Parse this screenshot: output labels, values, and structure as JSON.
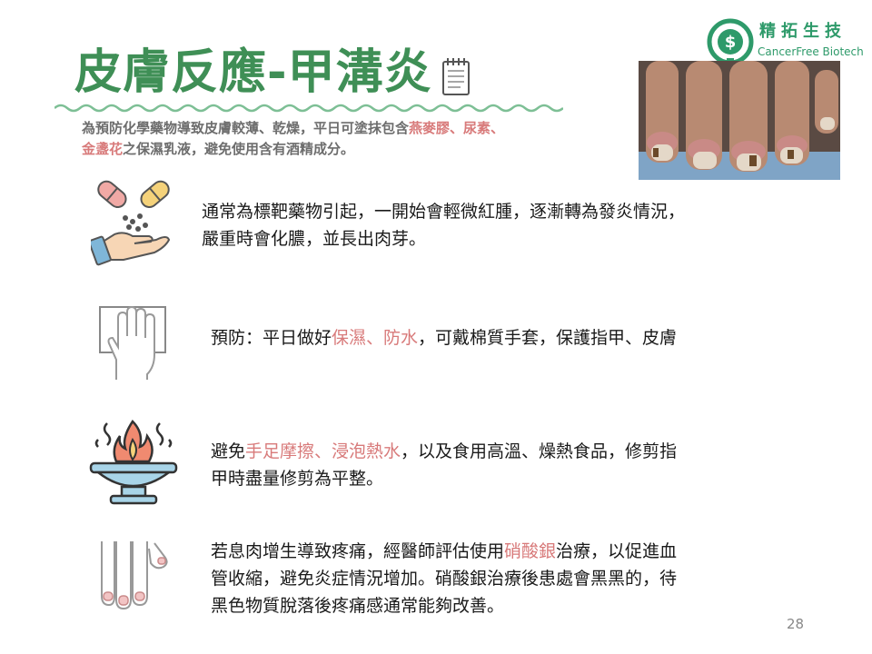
{
  "title": "皮膚反應-甲溝炎",
  "subtitle": {
    "p1": "為預防化學藥物導致皮膚較薄、乾燥，平日可塗抹包含",
    "h1": "燕麥膠、尿素、",
    "h2": "金盞花",
    "p2": "之保濕乳液，避免使用含有酒精成分。"
  },
  "logo": {
    "cn": "精拓生技",
    "en": "CancerFree Biotech"
  },
  "items": [
    {
      "line1": "通常為標靶藥物引起，一開始會輕微紅腫，逐漸轉為發炎情況，",
      "line2": "嚴重時會化膿，並長出肉芽。"
    },
    {
      "a": "預防：平日做好",
      "h": "保濕、防水",
      "b": "，可戴棉質手套，保護指甲、皮膚"
    },
    {
      "a": "避免",
      "h": "手足摩擦、浸泡熱水",
      "b": "，以及食用高溫、燥熱食品，修剪指",
      "line2": "甲時盡量修剪為平整。"
    },
    {
      "a": "若息肉增生導致疼痛，經醫師評估使用",
      "h": "硝酸銀",
      "b": "治療，以促進血",
      "line2": "管收縮，避免炎症情況增加。硝酸銀治療後患處會黑黑的，待",
      "line3": "黑色物質脫落後疼痛感通常能夠改善。"
    }
  ],
  "page_number": "28",
  "icons": [
    "notepad-icon",
    "cancerfree-logo-icon",
    "pills-hand-icon",
    "hand-icon",
    "flame-bowl-icon",
    "fingers-icon"
  ],
  "colors": {
    "title": "#3f8f56",
    "highlight": "#d87a7a",
    "subtitle": "#6d6d6d",
    "logo": "#2e9a6a"
  }
}
